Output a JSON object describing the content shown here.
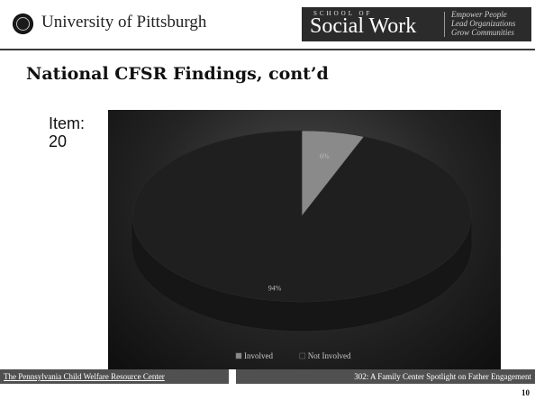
{
  "header": {
    "university_name": "University of Pittsburgh",
    "school_line_small": "SCHOOL OF",
    "school_line_big": "Social Work",
    "tagline": [
      "Empower People",
      "Lead Organizations",
      "Grow Communities"
    ]
  },
  "slide": {
    "title": "National CFSR Findings, cont’d",
    "item_label_line1": "Item:",
    "item_label_line2": "20"
  },
  "chart_data": {
    "type": "pie",
    "categories": [
      "Involved",
      "Not Involved"
    ],
    "values": [
      6,
      94
    ],
    "labels": [
      "6%",
      "94%"
    ],
    "colors": [
      "#8a8a8a",
      "#1f1f1f"
    ],
    "legend_position": "bottom",
    "title": ""
  },
  "footer": {
    "left_text": "The Pennsylvania Child Welfare Resource Center",
    "right_text": "302: A Family Center Spotlight on Father Engagement",
    "page_number": "10"
  }
}
